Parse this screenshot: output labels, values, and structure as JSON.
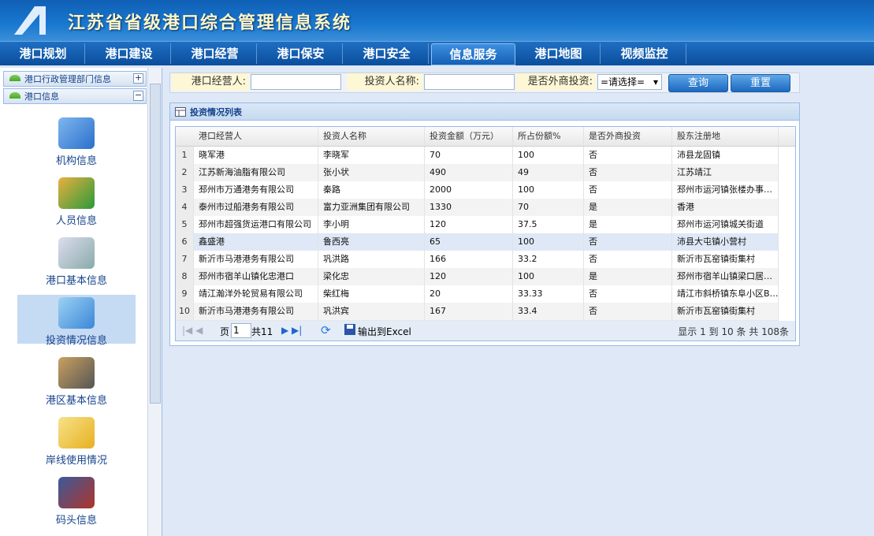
{
  "header": {
    "logo": "A.",
    "title": "江苏省省级港口综合管理信息系统"
  },
  "nav": [
    "港口规划",
    "港口建设",
    "港口经营",
    "港口保安",
    "港口安全",
    "信息服务",
    "港口地图",
    "视频监控"
  ],
  "sidebar": {
    "sections": [
      "港口行政管理部门信息",
      "港口信息"
    ],
    "items": [
      "机构信息",
      "人员信息",
      "港口基本信息",
      "投资情况信息",
      "港区基本信息",
      "岸线使用情况",
      "码头信息"
    ]
  },
  "filter": {
    "operator_label": "港口经营人:",
    "investor_label": "投资人名称:",
    "foreign_label": "是否外商投资:",
    "select": "=请选择=",
    "query": "查询",
    "reset": "重置"
  },
  "panel": {
    "title": "投资情况列表"
  },
  "table": {
    "headers": [
      "港口经营人",
      "投资人名称",
      "投资金额（万元）",
      "所占份额%",
      "是否外商投资",
      "股东注册地"
    ],
    "rows": [
      [
        "1",
        "晓军港",
        "李晓军",
        "70",
        "100",
        "否",
        "沛县龙固镇"
      ],
      [
        "2",
        "江苏新海油脂有限公司",
        "张小状",
        "490",
        "49",
        "否",
        "江苏靖江"
      ],
      [
        "3",
        "邳州市万通港务有限公司",
        "秦路",
        "2000",
        "100",
        "否",
        "邳州市运河镇张楼办事…"
      ],
      [
        "4",
        "泰州市过船港务有限公司",
        "富力亚洲集团有限公司",
        "1330",
        "70",
        "是",
        "香港"
      ],
      [
        "5",
        "邳州市超强货运港口有限公司",
        "李小明",
        "120",
        "37.5",
        "是",
        "邳州市运河镇城关街道"
      ],
      [
        "6",
        "鑫盛港",
        "鲁西亮",
        "65",
        "100",
        "否",
        "沛县大屯镇小营村"
      ],
      [
        "7",
        "新沂市马港港务有限公司",
        "巩洪路",
        "166",
        "33.2",
        "否",
        "新沂市瓦窑镇街集村"
      ],
      [
        "8",
        "邳州市宿羊山镇化忠港口",
        "梁化忠",
        "120",
        "100",
        "是",
        "邳州市宿羊山镇梁口居…"
      ],
      [
        "9",
        "靖江瀚洋外轮贸易有限公司",
        "柴红梅",
        "20",
        "33.33",
        "否",
        "靖江市斜桥镇东阜小区B…"
      ],
      [
        "10",
        "新沂市马港港务有限公司",
        "巩洪宾",
        "167",
        "33.4",
        "否",
        "新沂市瓦窑镇街集村"
      ]
    ]
  },
  "pager": {
    "page_label": "页",
    "page": "1",
    "total_pages": "共11",
    "export": "输出到Excel",
    "summary": "显示 1 到 10 条 共 108条"
  }
}
